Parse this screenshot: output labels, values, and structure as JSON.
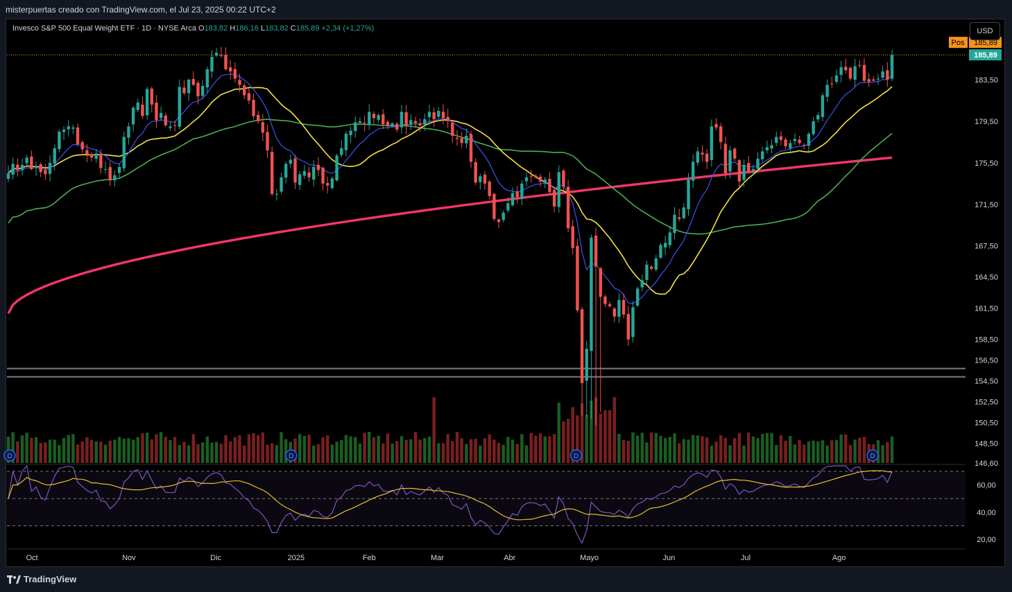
{
  "caption": "misterpuertas creado con TradingView.com, el Jul 23, 2025 00:22 UTC+2",
  "legend": {
    "symbol": "Invesco S&P 500 Equal Weight ETF · 1D · NYSE Arca",
    "o_label": "O",
    "o_value": "183,82",
    "h_label": "H",
    "h_value": "186,16",
    "l_label": "L",
    "l_value": "183,82",
    "c_label": "C",
    "c_value": "185,89",
    "change": "+2,34 (+1,27%)"
  },
  "currency": "USD",
  "brand": "TradingView",
  "colors": {
    "up": "#26a69a",
    "down": "#ef5350",
    "sma20": "#f5e146",
    "ema10": "#3f51f5",
    "sma50": "#4caf50",
    "sma200": "#f23668",
    "rsi": "#7e57c2",
    "rsi_ma": "#e6c229"
  },
  "chart_data": {
    "type": "candlestick",
    "price_axis": {
      "labels": [
        "183,50",
        "179,50",
        "175,50",
        "171,50",
        "167,50",
        "164,50",
        "161,50",
        "158,50",
        "156,50",
        "154,50",
        "152,50",
        "150,50",
        "148,50",
        "146,60"
      ],
      "values": [
        183.5,
        179.5,
        175.5,
        171.5,
        167.5,
        164.5,
        161.5,
        158.5,
        156.5,
        154.5,
        152.5,
        150.5,
        148.5,
        146.6
      ],
      "range": [
        146.6,
        188.5
      ]
    },
    "last_price": {
      "label": "185,89",
      "value": 185.89
    },
    "position": {
      "tag": "Pos",
      "label": "185,89",
      "value": 185.89
    },
    "support_lines": [
      155.7,
      154.9
    ],
    "x_axis": {
      "labels": [
        "Oct",
        "Nov",
        "Dic",
        "2025",
        "Feb",
        "Mar",
        "Abr",
        "Mayo",
        "Jun",
        "Jul",
        "Ago"
      ],
      "positions": [
        0.0,
        0.134,
        0.254,
        0.365,
        0.466,
        0.56,
        0.66,
        0.77,
        0.88,
        0.986,
        1.115
      ]
    },
    "dividend_marker": "D",
    "dividend_positions": [
      0.0,
      0.318,
      0.64,
      0.975
    ],
    "closes": [
      174.5,
      175.4,
      174.8,
      175.3,
      176.0,
      174.9,
      175.2,
      174.6,
      174.4,
      175.5,
      176.9,
      178.5,
      178.7,
      179.0,
      178.9,
      177.3,
      176.8,
      176.3,
      176.0,
      176.4,
      175.0,
      174.9,
      173.8,
      174.3,
      175.1,
      178.0,
      179.0,
      180.8,
      181.3,
      180.0,
      182.6,
      181.1,
      179.6,
      180.3,
      179.1,
      179.0,
      179.1,
      182.8,
      182.2,
      183.5,
      183.0,
      181.9,
      182.9,
      184.5,
      185.7,
      186.1,
      185.8,
      184.5,
      184.3,
      183.6,
      183.0,
      182.0,
      181.5,
      180.0,
      179.5,
      178.4,
      176.7,
      172.5,
      172.5,
      174.1,
      175.4,
      175.8,
      173.6,
      174.4,
      174.7,
      174.1,
      175.1,
      174.8,
      173.5,
      173.3,
      174.0,
      176.2,
      176.9,
      178.3,
      178.6,
      179.4,
      179.5,
      179.3,
      180.4,
      179.8,
      180.1,
      179.2,
      179.1,
      179.3,
      178.7,
      180.4,
      179.0,
      179.6,
      179.3,
      179.1,
      179.7,
      180.4,
      179.7,
      180.5,
      179.8,
      179.5,
      178.1,
      177.8,
      177.4,
      178.1,
      175.6,
      173.6,
      174.2,
      173.5,
      172.3,
      170.1,
      169.8,
      170.7,
      171.6,
      172.6,
      172.2,
      173.5,
      174.1,
      174.2,
      174.1,
      173.7,
      173.9,
      172.7,
      171.3,
      174.6,
      173.2,
      169.2,
      167.3,
      161.3,
      154.3,
      157.6,
      168.3,
      165.5,
      162.6,
      161.9,
      161.7,
      160.7,
      162.3,
      160.9,
      158.5,
      161.6,
      163.4,
      164.2,
      165.7,
      165.3,
      166.3,
      167.6,
      167.8,
      168.8,
      170.5,
      170.1,
      171.2,
      173.9,
      175.6,
      176.6,
      176.3,
      175.6,
      179.0,
      178.9,
      177.5,
      174.5,
      176.7,
      175.9,
      173.7,
      175.3,
      174.7,
      174.9,
      175.9,
      176.6,
      177.0,
      177.2,
      178.0,
      177.7,
      177.1,
      177.4,
      177.8,
      177.4,
      177.2,
      178.3,
      179.5,
      180.1,
      182.0,
      183.0,
      183.1,
      183.9,
      184.7,
      184.4,
      183.6,
      184.8,
      184.9,
      183.4,
      183.3,
      183.4,
      183.6,
      184.3,
      183.5,
      185.89
    ],
    "volume": {
      "scale": [
        0,
        1
      ]
    },
    "rsi": {
      "labels": [
        "60,00",
        "40,00",
        "20,00"
      ],
      "values": [
        60,
        40,
        20
      ],
      "range": [
        14,
        74
      ],
      "bands": [
        70,
        50,
        30
      ]
    },
    "indicators": [
      "EMA 10",
      "SMA 20",
      "SMA 50",
      "SMA 200",
      "RSI 14",
      "RSI MA"
    ]
  }
}
